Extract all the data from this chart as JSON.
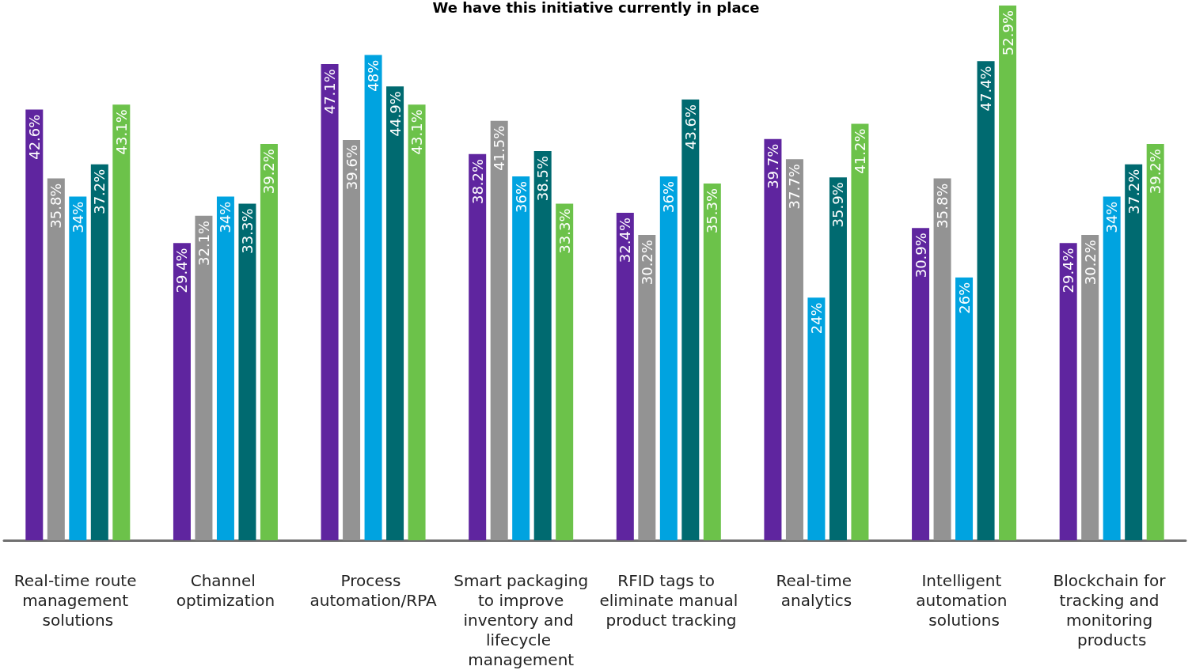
{
  "chart_data": {
    "type": "bar",
    "title": "We have this initiative currently in place",
    "categories": [
      "Real-time route management solutions",
      "Channel optimization",
      "Process automation/RPA",
      "Smart packaging to improve inventory and lifecycle management",
      "RFID tags to eliminate manual product tracking",
      "Real-time analytics",
      "Intelligent automation solutions",
      "Blockchain for tracking and monitoring products"
    ],
    "series": [
      {
        "color": "#5f259f",
        "values": [
          42.6,
          29.4,
          47.1,
          38.2,
          32.4,
          39.7,
          30.9,
          29.4
        ],
        "value_labels": [
          "42.6%",
          "29.4%",
          "47.1%",
          "38.2%",
          "32.4%",
          "39.7%",
          "30.9%",
          "29.4%"
        ]
      },
      {
        "color": "#939393",
        "values": [
          35.8,
          32.1,
          39.6,
          41.5,
          30.2,
          37.7,
          35.8,
          30.2
        ],
        "value_labels": [
          "35.8%",
          "32.1%",
          "39.6%",
          "41.5%",
          "30.2%",
          "37.7%",
          "35.8%",
          "30.2%"
        ]
      },
      {
        "color": "#00a3e0",
        "values": [
          34,
          34,
          48,
          36,
          36,
          24,
          26,
          34
        ],
        "value_labels": [
          "34%",
          "34%",
          "48%",
          "36%",
          "36%",
          "24%",
          "26%",
          "34%"
        ]
      },
      {
        "color": "#006a70",
        "values": [
          37.2,
          33.3,
          44.9,
          38.5,
          43.6,
          35.9,
          47.4,
          37.2
        ],
        "value_labels": [
          "37.2%",
          "33.3%",
          "44.9%",
          "38.5%",
          "43.6%",
          "35.9%",
          "47.4%",
          "37.2%"
        ]
      },
      {
        "color": "#6cc24a",
        "values": [
          43.1,
          39.2,
          43.1,
          33.3,
          35.3,
          41.2,
          52.9,
          39.2
        ],
        "value_labels": [
          "43.1%",
          "39.2%",
          "43.1%",
          "33.3%",
          "35.3%",
          "41.2%",
          "52.9%",
          "39.2%"
        ]
      }
    ],
    "stacked": false
  }
}
